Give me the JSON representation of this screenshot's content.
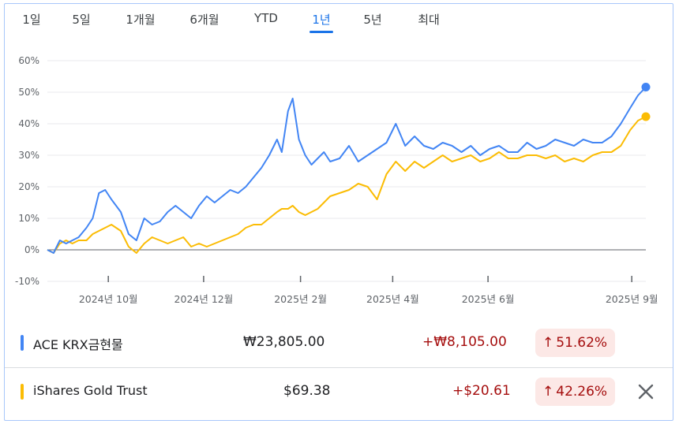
{
  "range_tabs": {
    "items": [
      "1일",
      "5일",
      "1개월",
      "6개월",
      "YTD",
      "1년",
      "5년",
      "최대"
    ],
    "active": "1년"
  },
  "chart_data": {
    "type": "line",
    "y_ticks": [
      "60%",
      "50%",
      "40%",
      "30%",
      "20%",
      "10%",
      "0%",
      "-10%"
    ],
    "x_ticks": [
      "2024년 10월",
      "2024년 12월",
      "2025년 2월",
      "2025년 4월",
      "2025년 6월",
      "2025년 9월"
    ],
    "ylim": [
      -10,
      60
    ],
    "grid": true,
    "series": [
      {
        "name": "ACE KRX금현물",
        "color": "#4285f4",
        "x": [
          "2024-08-23",
          "2024-08-27",
          "2024-08-31",
          "2024-09-04",
          "2024-09-08",
          "2024-09-12",
          "2024-09-17",
          "2024-09-21",
          "2024-09-25",
          "2024-09-29",
          "2024-10-03",
          "2024-10-09",
          "2024-10-14",
          "2024-10-19",
          "2024-10-24",
          "2024-10-29",
          "2024-11-03",
          "2024-11-08",
          "2024-11-13",
          "2024-11-18",
          "2024-11-23",
          "2024-11-28",
          "2024-12-03",
          "2024-12-08",
          "2024-12-13",
          "2024-12-18",
          "2024-12-23",
          "2024-12-28",
          "2025-01-02",
          "2025-01-07",
          "2025-01-12",
          "2025-01-17",
          "2025-01-20",
          "2025-01-24",
          "2025-01-27",
          "2025-01-31",
          "2025-02-04",
          "2025-02-08",
          "2025-02-12",
          "2025-02-16",
          "2025-02-20",
          "2025-02-26",
          "2025-03-04",
          "2025-03-10",
          "2025-03-16",
          "2025-03-22",
          "2025-03-28",
          "2025-04-03",
          "2025-04-09",
          "2025-04-15",
          "2025-04-21",
          "2025-04-27",
          "2025-05-03",
          "2025-05-09",
          "2025-05-15",
          "2025-05-21",
          "2025-05-27",
          "2025-06-02",
          "2025-06-08",
          "2025-06-14",
          "2025-06-20",
          "2025-06-26",
          "2025-07-02",
          "2025-07-08",
          "2025-07-14",
          "2025-07-20",
          "2025-07-26",
          "2025-08-01",
          "2025-08-07",
          "2025-08-13",
          "2025-08-19",
          "2025-08-25",
          "2025-08-31",
          "2025-09-05",
          "2025-09-10"
        ],
        "values": [
          0,
          -1,
          3,
          2,
          3,
          4,
          7,
          10,
          18,
          19,
          16,
          12,
          5,
          3,
          10,
          8,
          9,
          12,
          14,
          12,
          10,
          14,
          17,
          15,
          17,
          19,
          18,
          20,
          23,
          26,
          30,
          35,
          31,
          44,
          48,
          35,
          30,
          27,
          29,
          31,
          28,
          29,
          33,
          28,
          30,
          32,
          34,
          40,
          33,
          36,
          33,
          32,
          34,
          33,
          31,
          33,
          30,
          32,
          33,
          31,
          31,
          34,
          32,
          33,
          35,
          34,
          33,
          35,
          34,
          34,
          36,
          40,
          45,
          49,
          51.62
        ]
      },
      {
        "name": "iShares Gold Trust",
        "color": "#fbbc04",
        "x": [
          "2024-08-23",
          "2024-08-27",
          "2024-08-31",
          "2024-09-04",
          "2024-09-08",
          "2024-09-12",
          "2024-09-17",
          "2024-09-21",
          "2024-09-25",
          "2024-09-29",
          "2024-10-03",
          "2024-10-09",
          "2024-10-14",
          "2024-10-19",
          "2024-10-24",
          "2024-10-29",
          "2024-11-03",
          "2024-11-08",
          "2024-11-13",
          "2024-11-18",
          "2024-11-23",
          "2024-11-28",
          "2024-12-03",
          "2024-12-08",
          "2024-12-13",
          "2024-12-18",
          "2024-12-23",
          "2024-12-28",
          "2025-01-02",
          "2025-01-07",
          "2025-01-12",
          "2025-01-17",
          "2025-01-20",
          "2025-01-24",
          "2025-01-27",
          "2025-01-31",
          "2025-02-04",
          "2025-02-08",
          "2025-02-12",
          "2025-02-16",
          "2025-02-20",
          "2025-02-26",
          "2025-03-04",
          "2025-03-10",
          "2025-03-16",
          "2025-03-22",
          "2025-03-28",
          "2025-04-03",
          "2025-04-09",
          "2025-04-15",
          "2025-04-21",
          "2025-04-27",
          "2025-05-03",
          "2025-05-09",
          "2025-05-15",
          "2025-05-21",
          "2025-05-27",
          "2025-06-02",
          "2025-06-08",
          "2025-06-14",
          "2025-06-20",
          "2025-06-26",
          "2025-07-02",
          "2025-07-08",
          "2025-07-14",
          "2025-07-20",
          "2025-07-26",
          "2025-08-01",
          "2025-08-07",
          "2025-08-13",
          "2025-08-19",
          "2025-08-25",
          "2025-08-31",
          "2025-09-05",
          "2025-09-10"
        ],
        "values": [
          0,
          -1,
          2,
          3,
          2,
          3,
          3,
          5,
          6,
          7,
          8,
          6,
          1,
          -1,
          2,
          4,
          3,
          2,
          3,
          4,
          1,
          2,
          1,
          2,
          3,
          4,
          5,
          7,
          8,
          8,
          10,
          12,
          13,
          13,
          14,
          12,
          11,
          12,
          13,
          15,
          17,
          18,
          19,
          21,
          20,
          16,
          24,
          28,
          25,
          28,
          26,
          28,
          30,
          28,
          29,
          30,
          28,
          29,
          31,
          29,
          29,
          30,
          30,
          29,
          30,
          28,
          29,
          28,
          30,
          31,
          31,
          33,
          38,
          41,
          42.26
        ]
      }
    ]
  },
  "legend": {
    "rows": [
      {
        "name": "ACE KRX금현물",
        "price": "₩23,805.00",
        "change": "+₩8,105.00",
        "percent": "51.62%",
        "color": "#4285f4",
        "arrow_icon": "arrow-up-icon"
      },
      {
        "name": "iShares Gold Trust",
        "price": "$69.38",
        "change": "+$20.61",
        "percent": "42.26%",
        "color": "#fbbc04",
        "arrow_icon": "arrow-up-icon",
        "close_icon": "close-icon"
      }
    ]
  }
}
